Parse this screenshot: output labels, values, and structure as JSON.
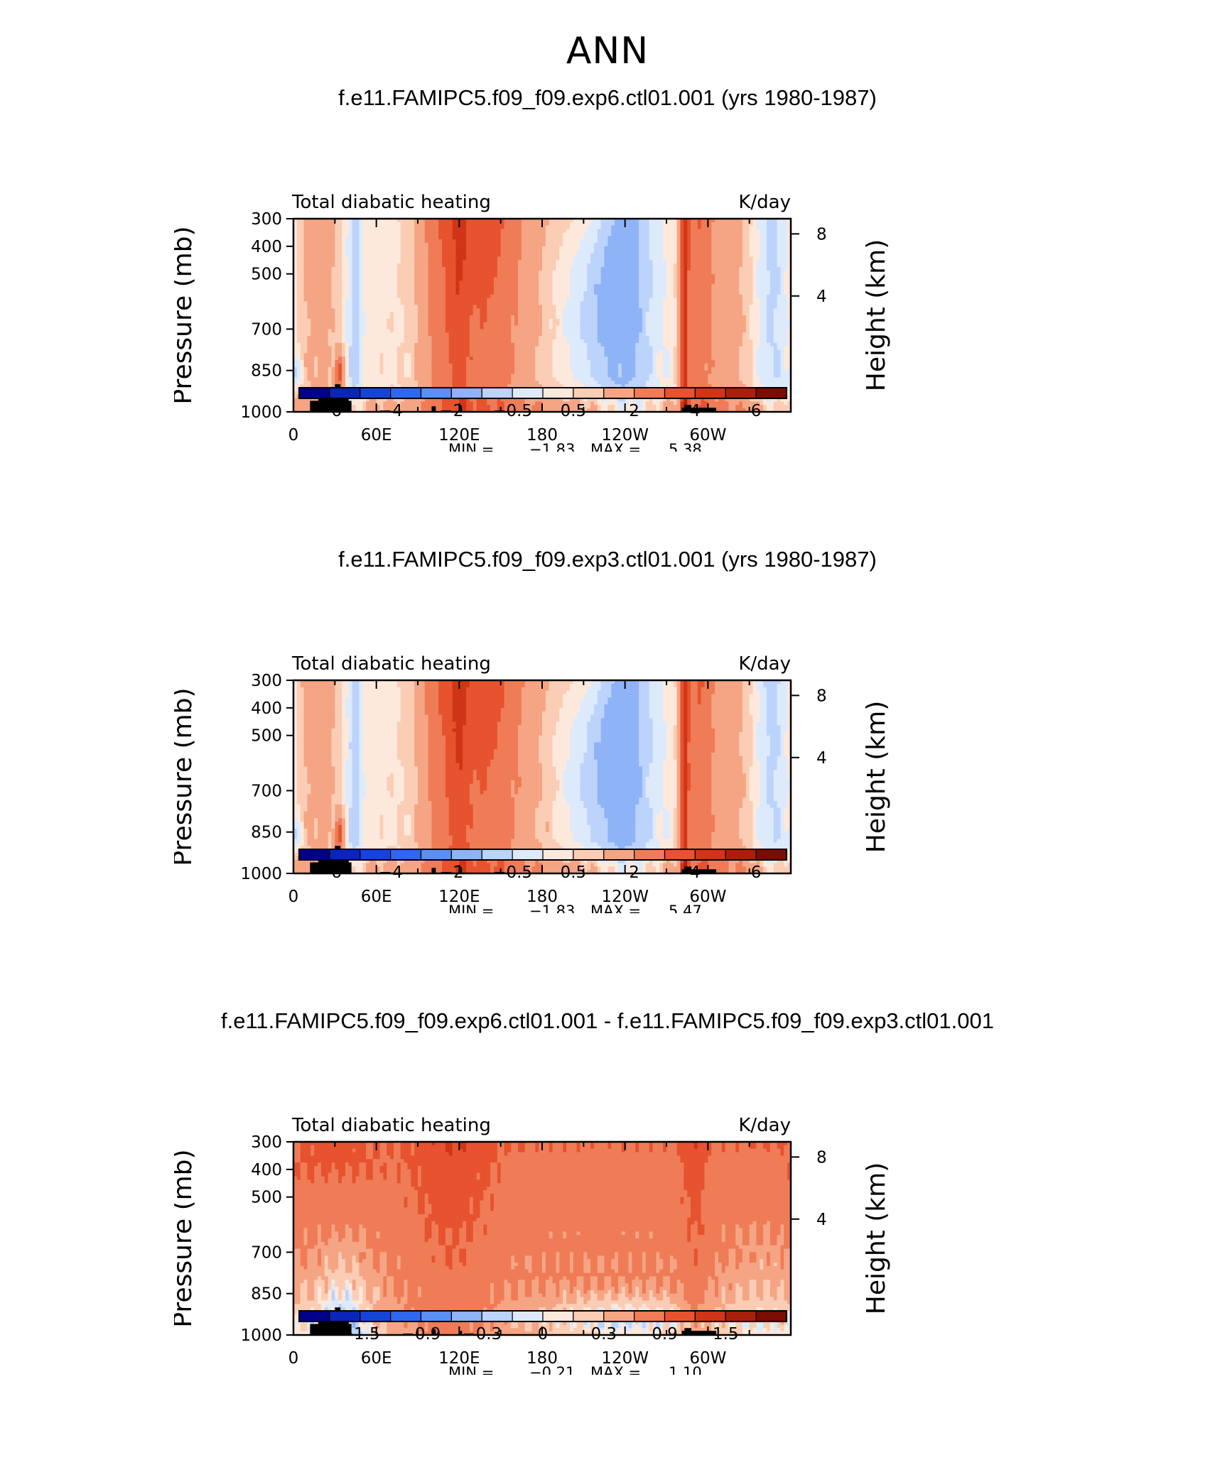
{
  "title": "ANN",
  "chart_data": [
    {
      "type": "heatmap",
      "title": "f.e11.FAMIPC5.f09_f09.exp6.ctl01.001 (yrs 1980-1987)",
      "left_label": "Total diabatic heating",
      "right_label": "K/day",
      "ylabel": "Pressure (mb)",
      "y2label": "Height (km)",
      "xticks": [
        "0",
        "60E",
        "120E",
        "180",
        "120W",
        "60W"
      ],
      "yticks": [
        "300",
        "400",
        "500",
        "700",
        "850",
        "1000"
      ],
      "y2ticks": [
        "8",
        "4"
      ],
      "ylim": [
        1000,
        300
      ],
      "stats": {
        "min_label": "MIN =",
        "min": "−1.83",
        "max_label": "MAX =",
        "max": "5.38"
      },
      "colorbar_labels": [
        "−6",
        "−4",
        "−2",
        "−0.5",
        "0.5",
        "2",
        "4",
        "6"
      ],
      "field": {
        "variant": "ctl",
        "intensity": 1.0
      }
    },
    {
      "type": "heatmap",
      "title": "f.e11.FAMIPC5.f09_f09.exp3.ctl01.001 (yrs 1980-1987)",
      "left_label": "Total diabatic heating",
      "right_label": "K/day",
      "ylabel": "Pressure (mb)",
      "y2label": "Height (km)",
      "xticks": [
        "0",
        "60E",
        "120E",
        "180",
        "120W",
        "60W"
      ],
      "yticks": [
        "300",
        "400",
        "500",
        "700",
        "850",
        "1000"
      ],
      "y2ticks": [
        "8",
        "4"
      ],
      "ylim": [
        1000,
        300
      ],
      "stats": {
        "min_label": "MIN =",
        "min": "−1.83",
        "max_label": "MAX =",
        "max": "5.47"
      },
      "colorbar_labels": [
        "−6",
        "−4",
        "−2",
        "−0.5",
        "0.5",
        "2",
        "4",
        "6"
      ],
      "field": {
        "variant": "ctl",
        "intensity": 1.02
      }
    },
    {
      "type": "heatmap",
      "title": "f.e11.FAMIPC5.f09_f09.exp6.ctl01.001 - f.e11.FAMIPC5.f09_f09.exp3.ctl01.001",
      "left_label": "Total diabatic heating",
      "right_label": "K/day",
      "ylabel": "Pressure (mb)",
      "y2label": "Height (km)",
      "xticks": [
        "0",
        "60E",
        "120E",
        "180",
        "120W",
        "60W"
      ],
      "yticks": [
        "300",
        "400",
        "500",
        "700",
        "850",
        "1000"
      ],
      "y2ticks": [
        "8",
        "4"
      ],
      "ylim": [
        1000,
        300
      ],
      "stats": {
        "min_label": "MIN =",
        "min": "−0.21",
        "max_label": "MAX =",
        "max": "1.10"
      },
      "colorbar_labels": [
        "−1.5",
        "−0.9",
        "−0.3",
        "0",
        "0.3",
        "0.9",
        "1.5"
      ],
      "field": {
        "variant": "diff",
        "intensity": 1.0
      }
    }
  ],
  "colors": {
    "palette": [
      "#00008b",
      "#0a25b8",
      "#1744d6",
      "#2f67ee",
      "#5a8ff5",
      "#8fb3f7",
      "#bcd3fb",
      "#ddeafc",
      "#fde9dc",
      "#fbcdb5",
      "#f5a584",
      "#ef7c57",
      "#e6532e",
      "#cf3516",
      "#aa1f0b",
      "#7b0c02"
    ],
    "topography": "#000000"
  }
}
